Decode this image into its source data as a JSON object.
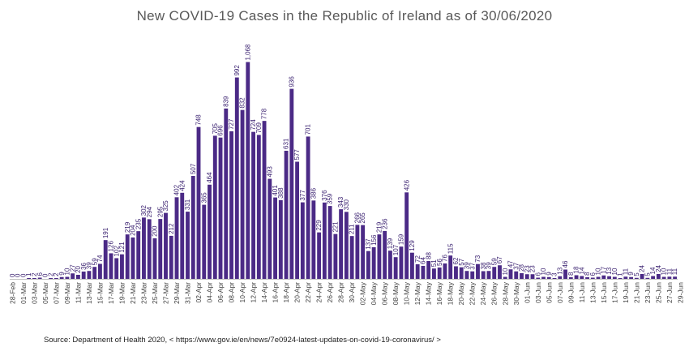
{
  "source_text": "Source: Department of Health 2020, < https://www.gov.ie/en/news/7e0924-latest-updates-on-covid-19-coronavirus/ >",
  "colors": {
    "bar": "#4b2a86",
    "axis": "#bfbfbf",
    "label": "#3a2170"
  },
  "chart_data": {
    "type": "bar",
    "title": "New COVID-19 Cases in the Republic of Ireland as  of 30/06/2020",
    "xlabel": "",
    "ylabel": "",
    "ylim": [
      0,
      1110
    ],
    "grid": false,
    "legend": "none",
    "tick_labels": [
      "28-Feb",
      "01-Mar",
      "03-Mar",
      "05-Mar",
      "07-Mar",
      "09-Mar",
      "11-Mar",
      "13-Mar",
      "15-Mar",
      "17-Mar",
      "19-Mar",
      "21-Mar",
      "23-Mar",
      "25-Mar",
      "27-Mar",
      "29-Mar",
      "31-Mar",
      "02-Apr",
      "04-Apr",
      "06-Apr",
      "08-Apr",
      "10-Apr",
      "12-Apr",
      "14-Apr",
      "16-Apr",
      "18-Apr",
      "20-Apr",
      "22-Apr",
      "24-Apr",
      "26-Apr",
      "28-Apr",
      "30-Apr",
      "02-May",
      "04-May",
      "06-May",
      "08-May",
      "10-May",
      "12-May",
      "14-May",
      "16-May",
      "18-May",
      "20-May",
      "22-May",
      "24-May",
      "26-May",
      "28-May",
      "30-May",
      "01-Jun",
      "03-Jun",
      "05-Jun",
      "07-Jun",
      "09-Jun",
      "11-Jun",
      "13-Jun",
      "15-Jun",
      "17-Jun",
      "19-Jun",
      "21-Jun",
      "23-Jun",
      "25-Jun",
      "27-Jun",
      "29-Jun"
    ],
    "values": [
      0,
      0,
      0,
      1,
      2,
      6,
      0,
      2,
      2,
      9,
      10,
      27,
      20,
      36,
      39,
      59,
      74,
      191,
      126,
      102,
      121,
      219,
      204,
      235,
      302,
      294,
      200,
      295,
      325,
      212,
      402,
      424,
      331,
      507,
      748,
      365,
      464,
      705,
      696,
      839,
      727,
      992,
      832,
      1068,
      724,
      709,
      778,
      493,
      401,
      388,
      631,
      936,
      577,
      377,
      701,
      386,
      229,
      376,
      359,
      221,
      343,
      330,
      211,
      266,
      265,
      137,
      156,
      219,
      236,
      139,
      107,
      159,
      426,
      129,
      72,
      64,
      88,
      51,
      56,
      76,
      115,
      62,
      57,
      39,
      37,
      73,
      38,
      39,
      59,
      67,
      10,
      47,
      37,
      28,
      23,
      23,
      6,
      10,
      9,
      3,
      13,
      46,
      8,
      18,
      14,
      8,
      6,
      10,
      17,
      13,
      10,
      1,
      11,
      9,
      5,
      24,
      5,
      14,
      24,
      10,
      11,
      11
    ]
  }
}
